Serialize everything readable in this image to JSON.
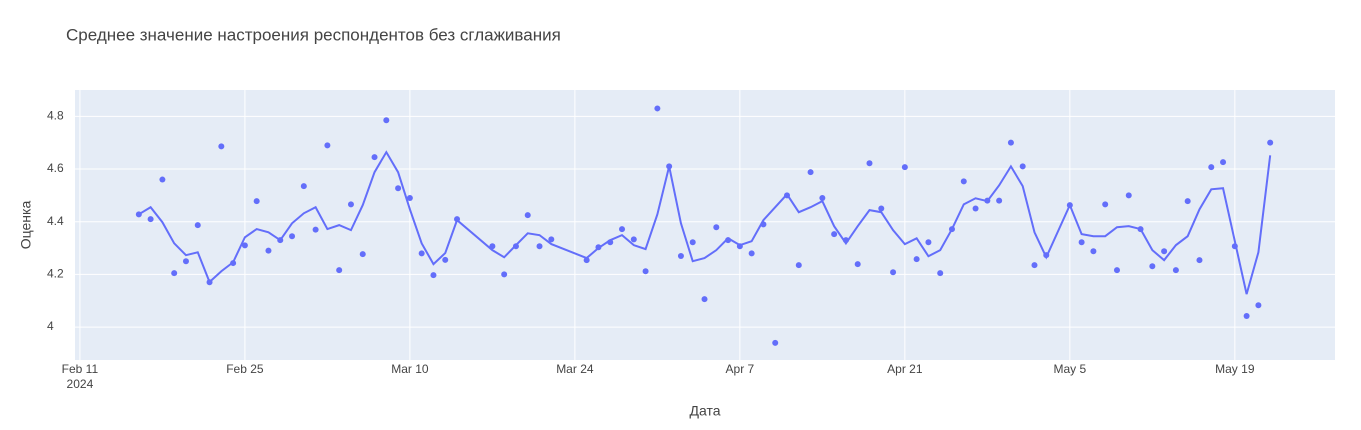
{
  "chart_data": {
    "type": "line",
    "title": "Среднее значение настроения респондентов без сглаживания",
    "x_label": "Дата",
    "y_label": "Оценка",
    "x": [
      "2024-02-16",
      "2024-02-17",
      "2024-02-18",
      "2024-02-19",
      "2024-02-20",
      "2024-02-21",
      "2024-02-22",
      "2024-02-23",
      "2024-02-24",
      "2024-02-25",
      "2024-02-26",
      "2024-02-27",
      "2024-02-28",
      "2024-02-29",
      "2024-03-01",
      "2024-03-02",
      "2024-03-03",
      "2024-03-04",
      "2024-03-05",
      "2024-03-06",
      "2024-03-07",
      "2024-03-08",
      "2024-03-09",
      "2024-03-10",
      "2024-03-11",
      "2024-03-12",
      "2024-03-13",
      "2024-03-14",
      "2024-03-17",
      "2024-03-18",
      "2024-03-19",
      "2024-03-20",
      "2024-03-21",
      "2024-03-22",
      "2024-03-25",
      "2024-03-26",
      "2024-03-27",
      "2024-03-28",
      "2024-03-29",
      "2024-03-30",
      "2024-03-31",
      "2024-04-01",
      "2024-04-02",
      "2024-04-03",
      "2024-04-04",
      "2024-04-05",
      "2024-04-06",
      "2024-04-07",
      "2024-04-08",
      "2024-04-09",
      "2024-04-10",
      "2024-04-11",
      "2024-04-12",
      "2024-04-13",
      "2024-04-14",
      "2024-04-15",
      "2024-04-16",
      "2024-04-17",
      "2024-04-18",
      "2024-04-19",
      "2024-04-20",
      "2024-04-21",
      "2024-04-22",
      "2024-04-23",
      "2024-04-24",
      "2024-04-25",
      "2024-04-26",
      "2024-04-27",
      "2024-04-28",
      "2024-04-29",
      "2024-04-30",
      "2024-05-01",
      "2024-05-02",
      "2024-05-03",
      "2024-05-05",
      "2024-05-06",
      "2024-05-07",
      "2024-05-08",
      "2024-05-09",
      "2024-05-10",
      "2024-05-11",
      "2024-05-12",
      "2024-05-13",
      "2024-05-14",
      "2024-05-15",
      "2024-05-16",
      "2024-05-17",
      "2024-05-18",
      "2024-05-19",
      "2024-05-20",
      "2024-05-21",
      "2024-05-22"
    ],
    "series": [
      {
        "mode": "markers",
        "color": "#636efa",
        "values": [
          4.428,
          4.41,
          4.56,
          4.205,
          4.25,
          4.387,
          4.17,
          4.686,
          4.243,
          4.31,
          4.478,
          4.29,
          4.33,
          4.345,
          4.535,
          4.37,
          4.69,
          4.216,
          4.466,
          4.277,
          4.645,
          4.785,
          4.527,
          4.49,
          4.28,
          4.197,
          4.255,
          4.41,
          4.307,
          4.2,
          4.307,
          4.425,
          4.307,
          4.333,
          4.254,
          4.303,
          4.322,
          4.372,
          4.333,
          4.212,
          4.83,
          4.61,
          4.27,
          4.322,
          4.106,
          4.379,
          4.33,
          4.307,
          4.28,
          4.39,
          3.94,
          4.5,
          4.235,
          4.588,
          4.49,
          4.353,
          4.33,
          4.239,
          4.622,
          4.45,
          4.208,
          4.607,
          4.258,
          4.322,
          4.205,
          4.372,
          4.553,
          4.45,
          4.48,
          4.48,
          4.7,
          4.61,
          4.235,
          4.273,
          4.463,
          4.322,
          4.288,
          4.466,
          4.216,
          4.5,
          4.372,
          4.231,
          4.288,
          4.216,
          4.478,
          4.254,
          4.607,
          4.626,
          4.307,
          4.042,
          4.083,
          4.7
        ]
      },
      {
        "mode": "lines",
        "color": "#636efa",
        "values": [
          4.428,
          4.455,
          4.398,
          4.318,
          4.273,
          4.284,
          4.171,
          4.212,
          4.246,
          4.341,
          4.372,
          4.36,
          4.33,
          4.394,
          4.432,
          4.455,
          4.372,
          4.387,
          4.368,
          4.463,
          4.588,
          4.664,
          4.588,
          4.447,
          4.318,
          4.239,
          4.281,
          4.406,
          4.292,
          4.265,
          4.311,
          4.356,
          4.349,
          4.315,
          4.262,
          4.3,
          4.33,
          4.349,
          4.311,
          4.296,
          4.428,
          4.61,
          4.394,
          4.25,
          4.262,
          4.292,
          4.337,
          4.311,
          4.326,
          4.406,
          4.455,
          4.504,
          4.436,
          4.455,
          4.478,
          4.383,
          4.318,
          4.383,
          4.444,
          4.436,
          4.368,
          4.315,
          4.337,
          4.269,
          4.292,
          4.372,
          4.466,
          4.489,
          4.478,
          4.538,
          4.61,
          4.535,
          4.36,
          4.265,
          4.463,
          4.353,
          4.345,
          4.345,
          4.379,
          4.383,
          4.372,
          4.292,
          4.254,
          4.311,
          4.345,
          4.447,
          4.523,
          4.527,
          4.326,
          4.125,
          4.284,
          4.652
        ]
      }
    ],
    "xlim": [
      "2024-02-10T14:00:00Z",
      "2024-05-27T12:00:00Z"
    ],
    "xticks": [
      {
        "value": "2024-02-11",
        "label": "Feb 11"
      },
      {
        "value": "2024-02-25",
        "label": "Feb 25"
      },
      {
        "value": "2024-03-10",
        "label": "Mar 10"
      },
      {
        "value": "2024-03-24",
        "label": "Mar 24"
      },
      {
        "value": "2024-04-07",
        "label": "Apr 7"
      },
      {
        "value": "2024-04-21",
        "label": "Apr 21"
      },
      {
        "value": "2024-05-05",
        "label": "May 5"
      },
      {
        "value": "2024-05-19",
        "label": "May 19"
      }
    ],
    "x_tick_year": "2024",
    "ylim": [
      3.875,
      4.9
    ],
    "yticks": [
      4,
      4.2,
      4.4,
      4.6,
      4.8
    ],
    "grid": true
  }
}
